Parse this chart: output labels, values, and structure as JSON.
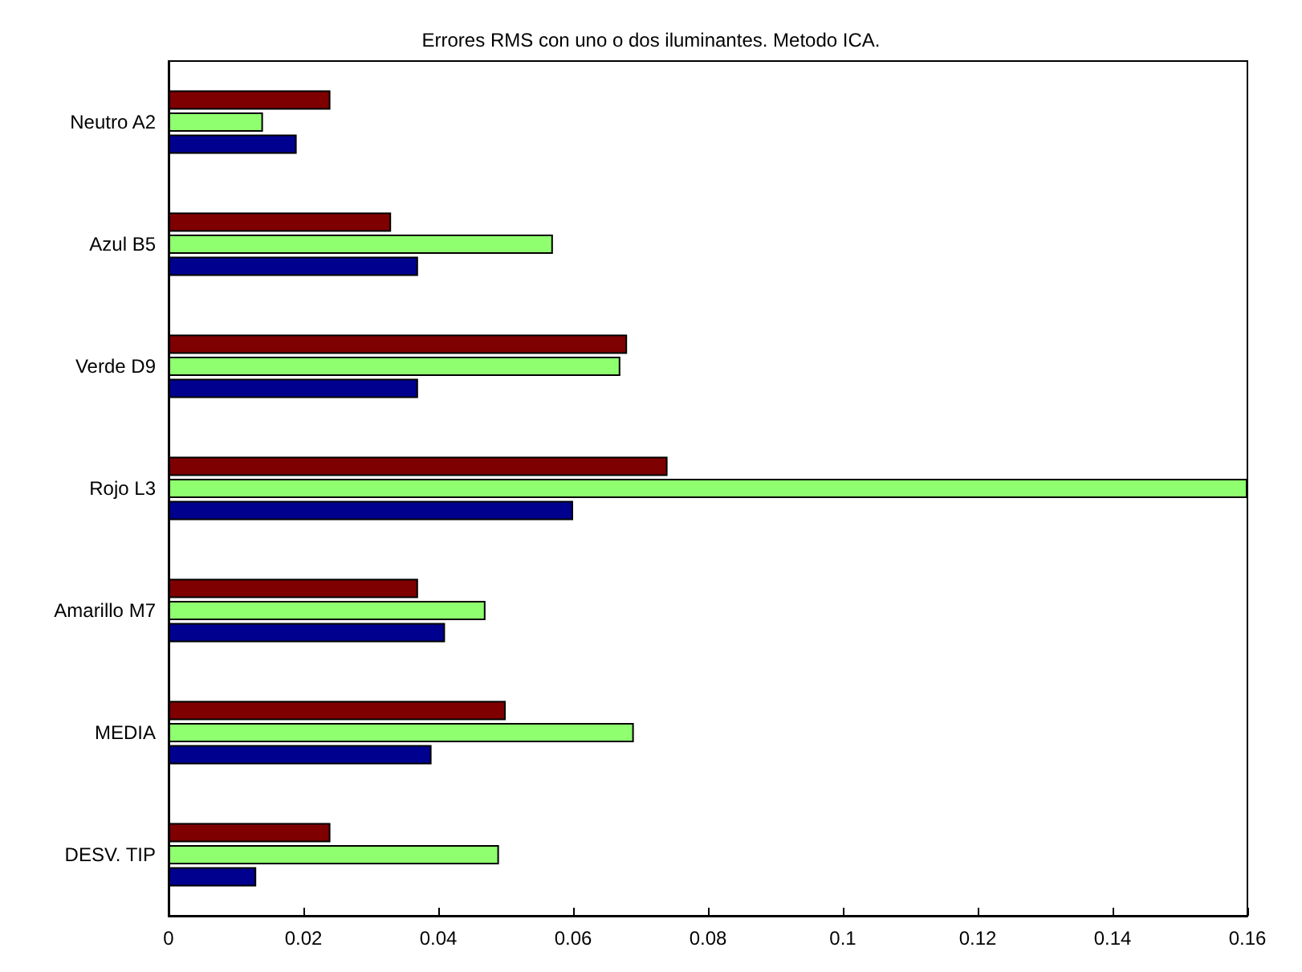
{
  "chart_data": {
    "type": "bar",
    "orientation": "horizontal",
    "title": "Errores RMS con uno o dos iluminantes. Metodo ICA.",
    "categories": [
      "Neutro A2",
      "Azul B5",
      "Verde D9",
      "Rojo L3",
      "Amarillo M7",
      "MEDIA",
      "DESV. TIP"
    ],
    "series": [
      {
        "color": "#7f0000",
        "values": [
          0.024,
          0.033,
          0.068,
          0.074,
          0.037,
          0.05,
          0.024
        ]
      },
      {
        "color": "#8fff6f",
        "values": [
          0.014,
          0.057,
          0.067,
          0.16,
          0.047,
          0.069,
          0.049
        ]
      },
      {
        "color": "#00008f",
        "values": [
          0.019,
          0.037,
          0.037,
          0.06,
          0.041,
          0.039,
          0.013
        ]
      }
    ],
    "xlim": [
      0,
      0.16
    ],
    "xticks": [
      0,
      0.02,
      0.04,
      0.06,
      0.08,
      0.1,
      0.12,
      0.14,
      0.16
    ],
    "grid": false
  }
}
